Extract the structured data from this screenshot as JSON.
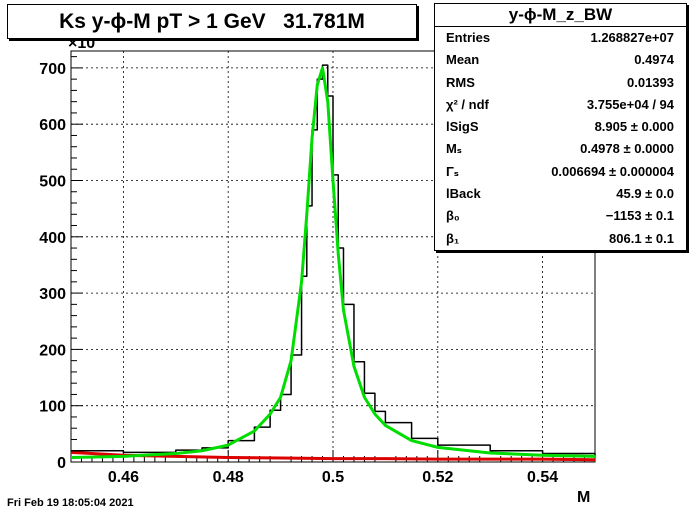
{
  "title": "Ks y-ϕ-M pT > 1 GeV   31.781M",
  "timestamp": "Fri Feb 19 18:05:04 2021",
  "stats": {
    "name": "y-ϕ-M_z_BW",
    "rows": [
      {
        "label": "Entries",
        "value": "1.268827e+07"
      },
      {
        "label": "Mean",
        "value": "0.4974"
      },
      {
        "label": "RMS",
        "value": "0.01393"
      },
      {
        "label": "χ² / ndf",
        "value": "3.755e+04 / 94"
      },
      {
        "label": "lSigS",
        "value": "8.905 ± 0.000"
      },
      {
        "label": "Mₛ",
        "value": "0.4978 ± 0.0000"
      },
      {
        "label": "Γₛ",
        "value": "0.006694 ± 0.000004"
      },
      {
        "label": "lBack",
        "value": "45.9 ± 0.0"
      },
      {
        "label": "β₀",
        "value": "−1153 ± 0.1"
      },
      {
        "label": "β₁",
        "value": "806.1 ± 0.1"
      }
    ]
  },
  "chart_data": {
    "type": "line",
    "title": "Ks y-ϕ-M pT > 1 GeV   31.781M",
    "xlabel": "M",
    "ylabel": "",
    "y_multiplier_label": "×10",
    "xlim": [
      0.45,
      0.55
    ],
    "ylim": [
      0,
      730
    ],
    "xticks": [
      "0.46",
      "0.48",
      "0.5",
      "0.52",
      "0.54"
    ],
    "xtick_values": [
      0.46,
      0.48,
      0.5,
      0.52,
      0.54
    ],
    "yticks": [
      "0",
      "100",
      "200",
      "300",
      "400",
      "500",
      "600",
      "700"
    ],
    "ytick_values": [
      0,
      100,
      200,
      300,
      400,
      500,
      600,
      700
    ],
    "grid": true,
    "series": [
      {
        "role": "histogram",
        "color": "#000000",
        "x": [
          0.45,
          0.46,
          0.47,
          0.475,
          0.48,
          0.485,
          0.488,
          0.49,
          0.492,
          0.494,
          0.495,
          0.496,
          0.497,
          0.498,
          0.499,
          0.5,
          0.501,
          0.502,
          0.504,
          0.506,
          0.508,
          0.51,
          0.515,
          0.52,
          0.53,
          0.54,
          0.55
        ],
        "y": [
          20,
          17,
          21,
          25,
          38,
          62,
          92,
          120,
          190,
          330,
          455,
          590,
          680,
          705,
          650,
          510,
          380,
          280,
          178,
          122,
          90,
          70,
          42,
          30,
          20,
          15,
          12
        ]
      },
      {
        "role": "fit-total",
        "color": "#00dd00",
        "x": [
          0.45,
          0.46,
          0.47,
          0.475,
          0.48,
          0.485,
          0.488,
          0.49,
          0.492,
          0.494,
          0.495,
          0.496,
          0.497,
          0.498,
          0.499,
          0.5,
          0.501,
          0.502,
          0.504,
          0.506,
          0.508,
          0.51,
          0.515,
          0.52,
          0.53,
          0.54,
          0.55
        ],
        "y": [
          8,
          10,
          15,
          20,
          30,
          55,
          85,
          115,
          180,
          320,
          440,
          575,
          670,
          700,
          640,
          500,
          370,
          270,
          170,
          115,
          85,
          65,
          38,
          26,
          16,
          12,
          10
        ]
      },
      {
        "role": "fit-background",
        "color": "#dd0000",
        "x": [
          0.45,
          0.46,
          0.47,
          0.48,
          0.49,
          0.5,
          0.51,
          0.52,
          0.53,
          0.54,
          0.55
        ],
        "y": [
          17,
          12,
          10,
          8,
          7,
          6,
          6,
          5,
          5,
          5,
          4
        ]
      }
    ]
  }
}
